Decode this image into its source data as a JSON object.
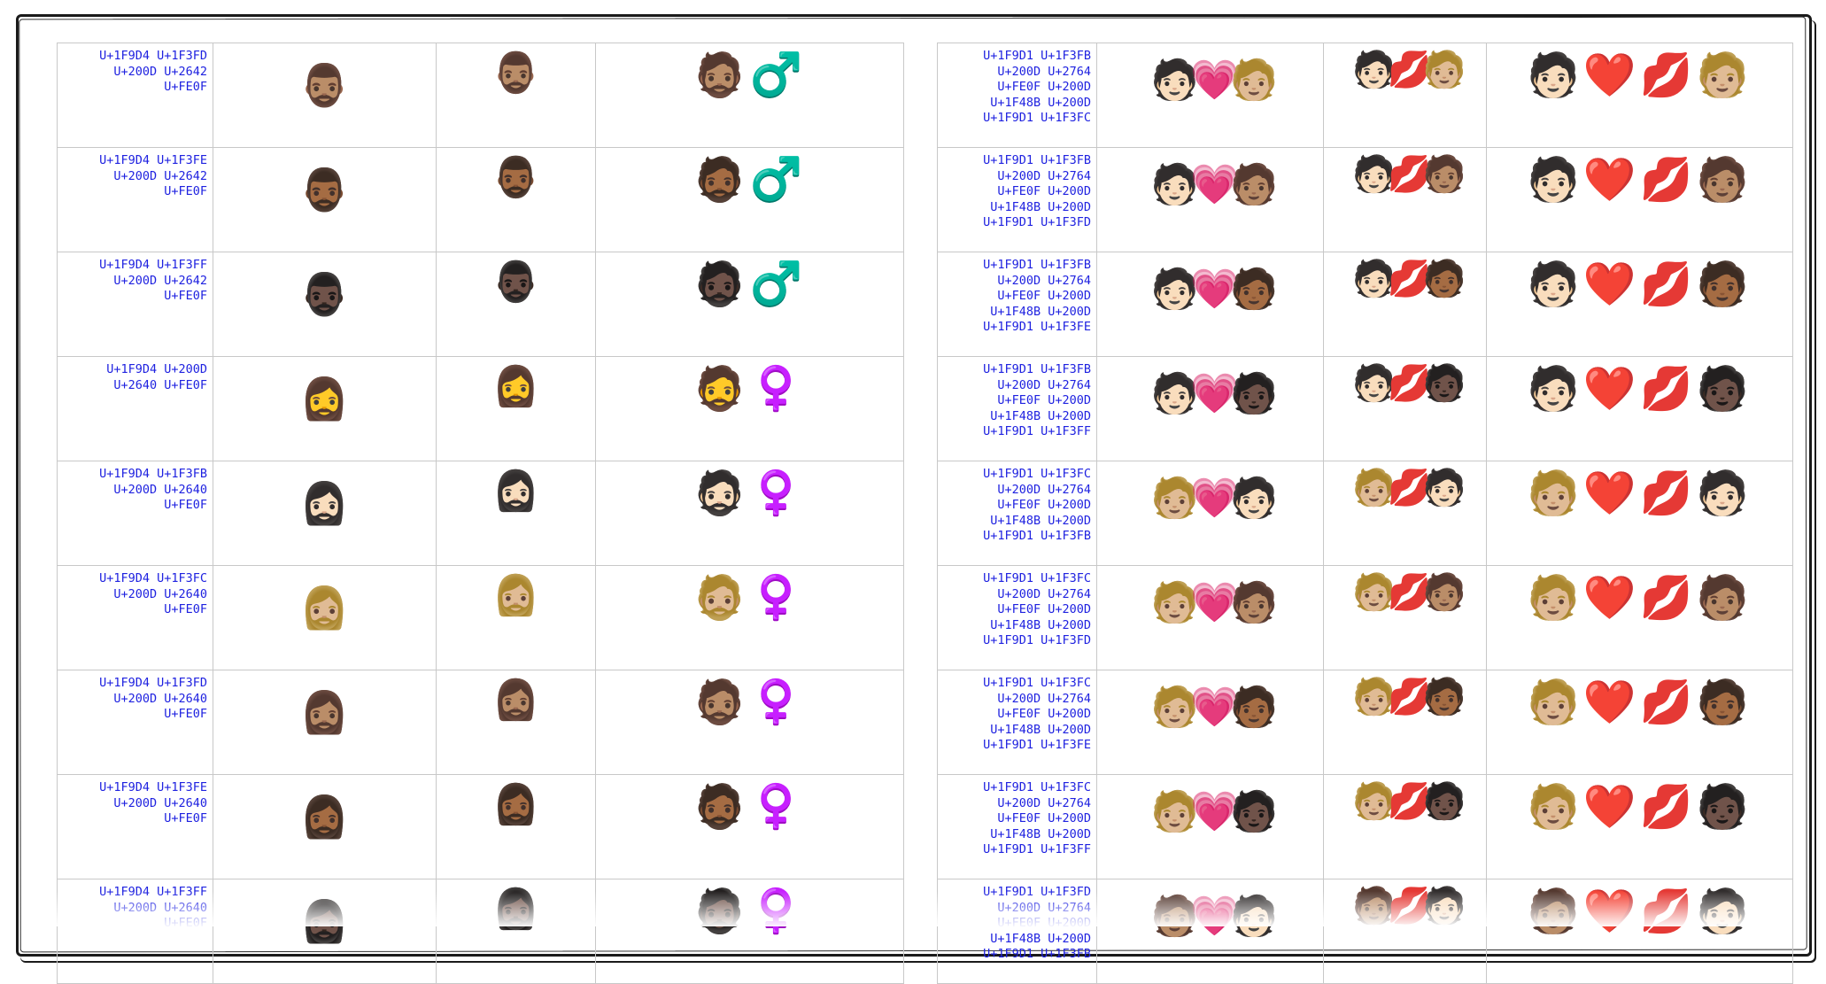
{
  "left_table": {
    "rows": [
      {
        "code": "U+1F9D4 U+1F3FD\nU+200D U+2642\nU+FE0F",
        "image": "🧔🏽‍♂️",
        "sample": "🧔🏽‍♂️",
        "sequence": "🧔🏽♂️"
      },
      {
        "code": "U+1F9D4 U+1F3FE\nU+200D U+2642\nU+FE0F",
        "image": "🧔🏾‍♂️",
        "sample": "🧔🏾‍♂️",
        "sequence": "🧔🏾♂️"
      },
      {
        "code": "U+1F9D4 U+1F3FF\nU+200D U+2642\nU+FE0F",
        "image": "🧔🏿‍♂️",
        "sample": "🧔🏿‍♂️",
        "sequence": "🧔🏿♂️"
      },
      {
        "code": "U+1F9D4 U+200D\nU+2640 U+FE0F",
        "image": "🧔‍♀️",
        "sample": "🧔‍♀️",
        "sequence": "🧔♀️"
      },
      {
        "code": "U+1F9D4 U+1F3FB\nU+200D U+2640\nU+FE0F",
        "image": "🧔🏻‍♀️",
        "sample": "🧔🏻‍♀️",
        "sequence": "🧔🏻♀️"
      },
      {
        "code": "U+1F9D4 U+1F3FC\nU+200D U+2640\nU+FE0F",
        "image": "🧔🏼‍♀️",
        "sample": "🧔🏼‍♀️",
        "sequence": "🧔🏼♀️"
      },
      {
        "code": "U+1F9D4 U+1F3FD\nU+200D U+2640\nU+FE0F",
        "image": "🧔🏽‍♀️",
        "sample": "🧔🏽‍♀️",
        "sequence": "🧔🏽♀️"
      },
      {
        "code": "U+1F9D4 U+1F3FE\nU+200D U+2640\nU+FE0F",
        "image": "🧔🏾‍♀️",
        "sample": "🧔🏾‍♀️",
        "sequence": "🧔🏾♀️"
      },
      {
        "code": "U+1F9D4 U+1F3FF\nU+200D U+2640\nU+FE0F",
        "image": "🧔🏿‍♀️",
        "sample": "🧔🏿‍♀️",
        "sequence": "🧔🏿♀️"
      }
    ]
  },
  "right_table": {
    "rows": [
      {
        "code": "U+1F9D1 U+1F3FB\nU+200D U+2764\nU+FE0F U+200D\nU+1F48B U+200D\nU+1F9D1 U+1F3FC",
        "image": "🧑🏻💗🧑🏼",
        "sample": "🧑🏻💋🧑🏼",
        "sequence": "🧑🏻❤️💋🧑🏼"
      },
      {
        "code": "U+1F9D1 U+1F3FB\nU+200D U+2764\nU+FE0F U+200D\nU+1F48B U+200D\nU+1F9D1 U+1F3FD",
        "image": "🧑🏻💗🧑🏽",
        "sample": "🧑🏻💋🧑🏽",
        "sequence": "🧑🏻❤️💋🧑🏽"
      },
      {
        "code": "U+1F9D1 U+1F3FB\nU+200D U+2764\nU+FE0F U+200D\nU+1F48B U+200D\nU+1F9D1 U+1F3FE",
        "image": "🧑🏻💗🧑🏾",
        "sample": "🧑🏻💋🧑🏾",
        "sequence": "🧑🏻❤️💋🧑🏾"
      },
      {
        "code": "U+1F9D1 U+1F3FB\nU+200D U+2764\nU+FE0F U+200D\nU+1F48B U+200D\nU+1F9D1 U+1F3FF",
        "image": "🧑🏻💗🧑🏿",
        "sample": "🧑🏻💋🧑🏿",
        "sequence": "🧑🏻❤️💋🧑🏿"
      },
      {
        "code": "U+1F9D1 U+1F3FC\nU+200D U+2764\nU+FE0F U+200D\nU+1F48B U+200D\nU+1F9D1 U+1F3FB",
        "image": "🧑🏼💗🧑🏻",
        "sample": "🧑🏼💋🧑🏻",
        "sequence": "🧑🏼❤️💋🧑🏻"
      },
      {
        "code": "U+1F9D1 U+1F3FC\nU+200D U+2764\nU+FE0F U+200D\nU+1F48B U+200D\nU+1F9D1 U+1F3FD",
        "image": "🧑🏼💗🧑🏽",
        "sample": "🧑🏼💋🧑🏽",
        "sequence": "🧑🏼❤️💋🧑🏽"
      },
      {
        "code": "U+1F9D1 U+1F3FC\nU+200D U+2764\nU+FE0F U+200D\nU+1F48B U+200D\nU+1F9D1 U+1F3FE",
        "image": "🧑🏼💗🧑🏾",
        "sample": "🧑🏼💋🧑🏾",
        "sequence": "🧑🏼❤️💋🧑🏾"
      },
      {
        "code": "U+1F9D1 U+1F3FC\nU+200D U+2764\nU+FE0F U+200D\nU+1F48B U+200D\nU+1F9D1 U+1F3FF",
        "image": "🧑🏼💗🧑🏿",
        "sample": "🧑🏼💋🧑🏿",
        "sequence": "🧑🏼❤️💋🧑🏿"
      },
      {
        "code": "U+1F9D1 U+1F3FD\nU+200D U+2764\nU+FE0F U+200D\nU+1F48B U+200D\nU+1F9D1 U+1F3FB",
        "image": "🧑🏽💗🧑🏻",
        "sample": "🧑🏽💋🧑🏻",
        "sequence": "🧑🏽❤️💋🧑🏻"
      }
    ]
  }
}
